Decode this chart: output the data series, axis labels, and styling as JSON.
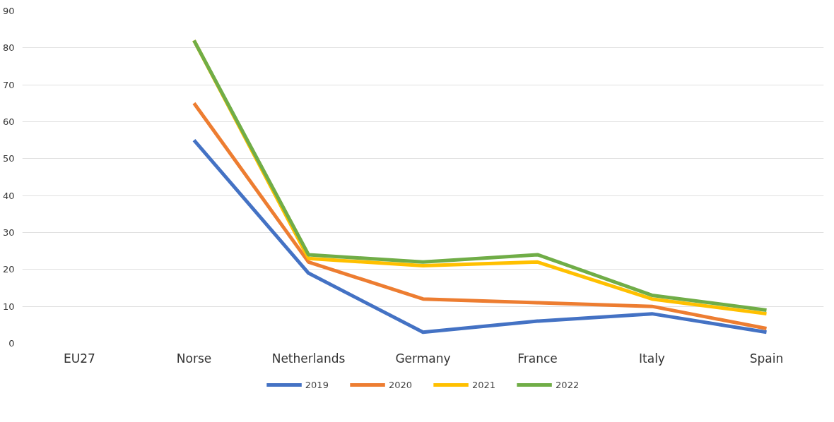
{
  "chart_data": {
    "type": "line",
    "categories": [
      "EU27",
      "Norse",
      "Netherlands",
      "Germany",
      "France",
      "Italy",
      "Spain"
    ],
    "series": [
      {
        "name": "2019",
        "color": "#4472c4",
        "values": [
          null,
          55,
          19,
          3,
          6,
          8,
          3
        ]
      },
      {
        "name": "2020",
        "color": "#ed7d31",
        "values": [
          null,
          65,
          22,
          12,
          11,
          10,
          4
        ]
      },
      {
        "name": "2021",
        "color": "#ffc000",
        "values": [
          null,
          82,
          23,
          21,
          22,
          12,
          8
        ]
      },
      {
        "name": "2022",
        "color": "#70ad47",
        "values": [
          null,
          82,
          24,
          22,
          24,
          13,
          9
        ]
      }
    ],
    "ylim": [
      0,
      90
    ],
    "yticks": [
      0,
      10,
      20,
      30,
      40,
      50,
      60,
      70,
      80,
      90
    ],
    "grid": "y",
    "legend": "bottom",
    "marker": "none",
    "line_style": "solid"
  }
}
